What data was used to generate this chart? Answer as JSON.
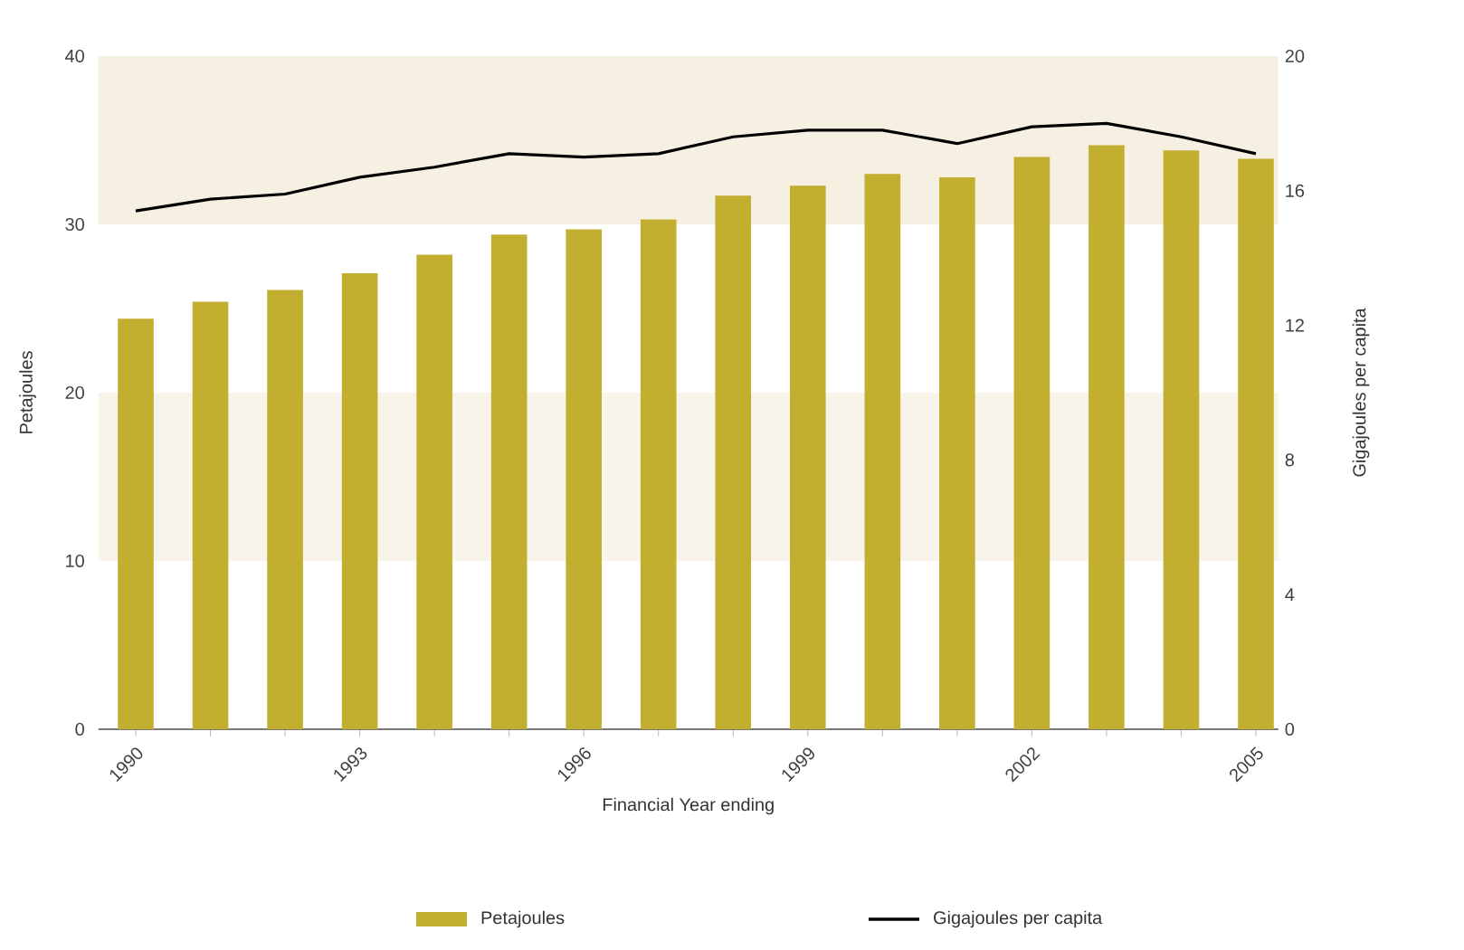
{
  "chart_data": {
    "type": "bar",
    "categories": [
      "1990",
      null,
      null,
      "1993",
      null,
      null,
      "1996",
      null,
      null,
      "1999",
      null,
      null,
      "2002",
      null,
      null,
      "2005"
    ],
    "series": [
      {
        "name": "Petajoules",
        "color": "#c2ae2f",
        "values": [
          24.4,
          25.4,
          26.1,
          27.1,
          28.2,
          29.4,
          29.7,
          30.3,
          31.7,
          32.3,
          33.0,
          32.8,
          34.0,
          34.7,
          34.4,
          33.9
        ]
      },
      {
        "name": "Gigajoules per capita",
        "type": "line",
        "axis": "y2",
        "color": "#000000",
        "values": [
          15.4,
          15.75,
          15.9,
          16.4,
          16.7,
          17.1,
          17.0,
          17.1,
          17.6,
          17.8,
          17.8,
          17.4,
          17.9,
          18.0,
          17.6,
          17.1
        ]
      }
    ],
    "xlabel": "Financial Year ending",
    "ylabel": "Petajoules",
    "y2label": "Gigajoules per capita",
    "ylim": [
      0,
      40
    ],
    "yticks": [
      0,
      10,
      20,
      30,
      40
    ],
    "y2lim": [
      0,
      20
    ],
    "y2ticks": [
      0,
      4,
      8,
      12,
      16,
      20
    ],
    "bands": [
      {
        "axis": "y",
        "from": 10,
        "to": 20,
        "color": "#f8f4ea"
      },
      {
        "axis": "y",
        "from": 30,
        "to": 40,
        "color": "#f5f0e1"
      }
    ],
    "legend": "bottom"
  }
}
